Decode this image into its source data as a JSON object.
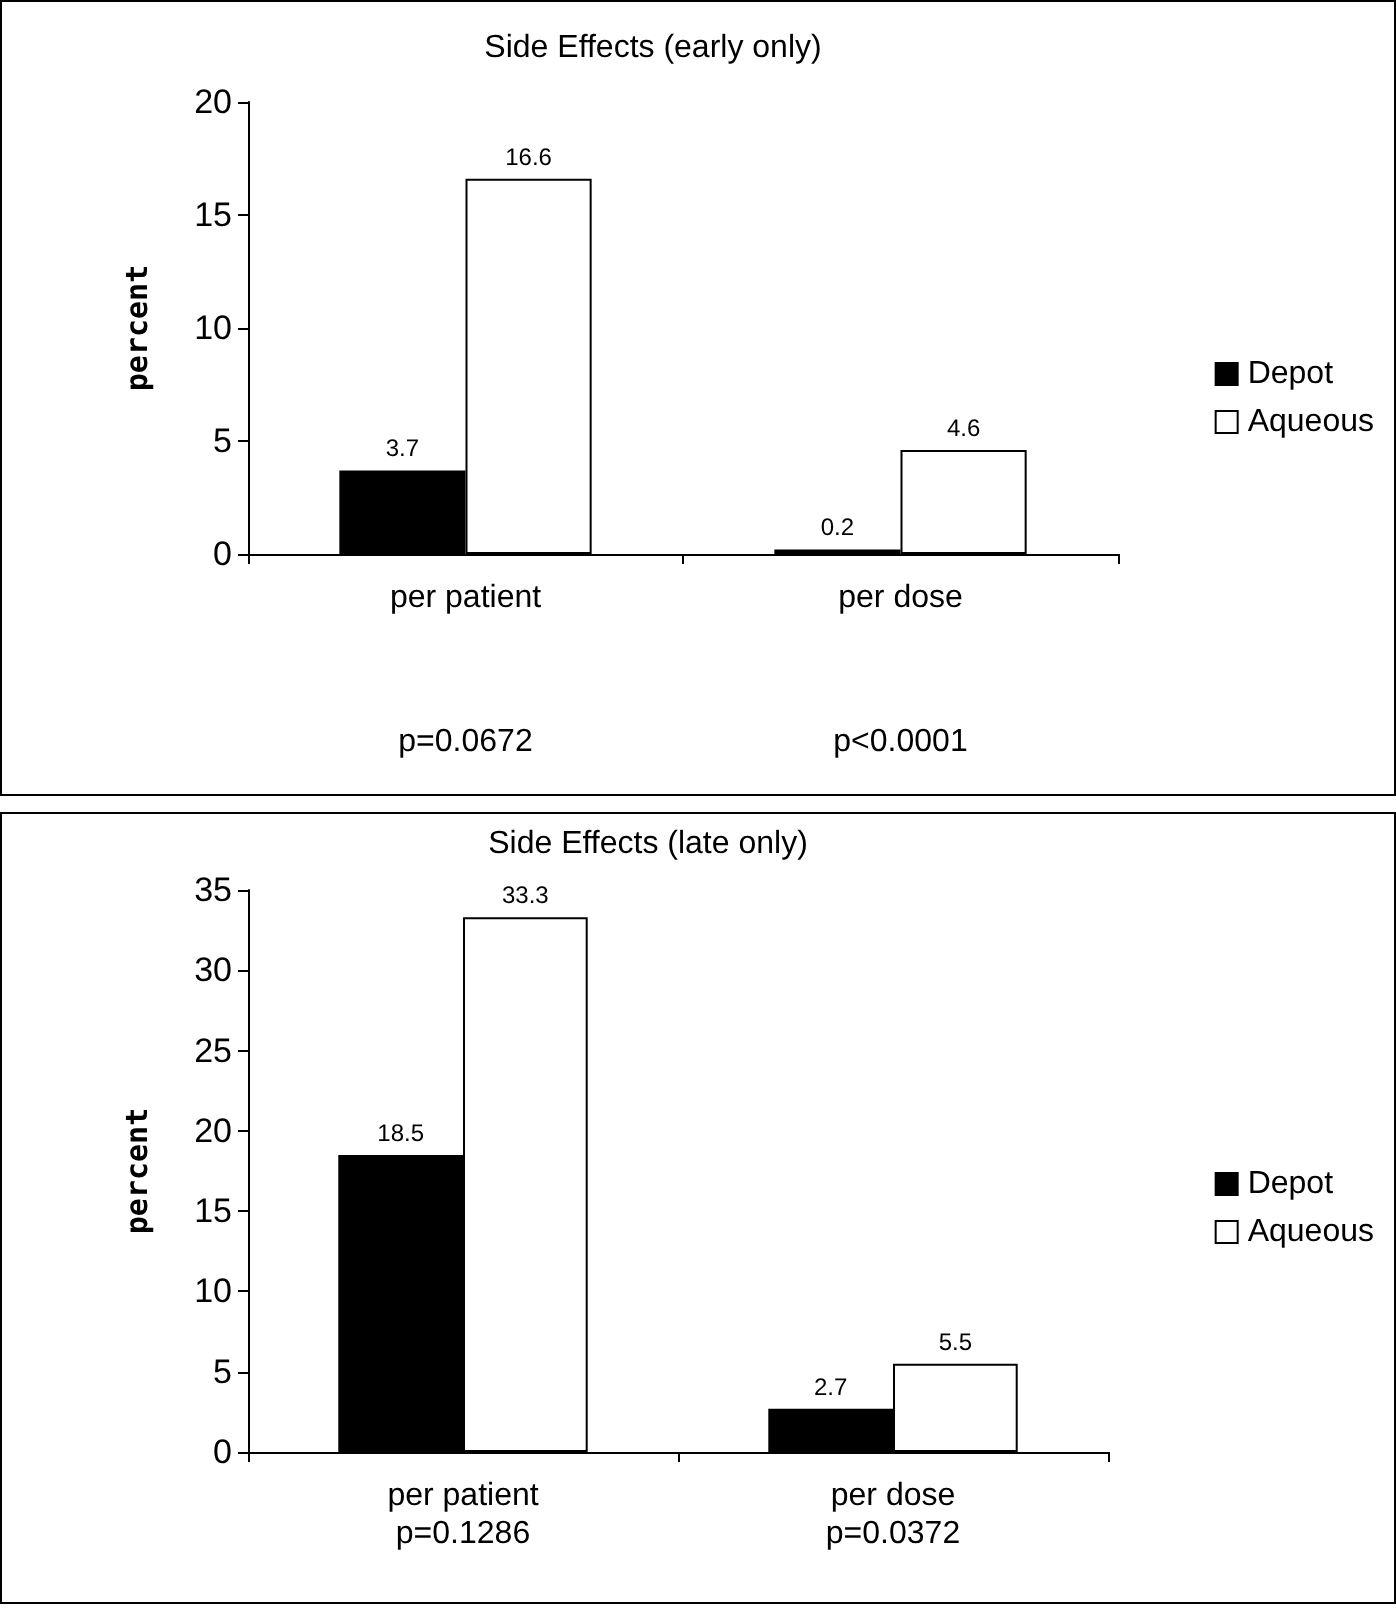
{
  "chart_data": [
    {
      "type": "bar",
      "title": "Side Effects (early only)",
      "ylabel": "percent",
      "categories": [
        "per patient",
        "per dose"
      ],
      "series": [
        {
          "name": "Depot",
          "color": "#000000",
          "values": [
            3.7,
            0.2
          ]
        },
        {
          "name": "Aqueous",
          "color": "#ffffff",
          "values": [
            16.6,
            4.6
          ]
        }
      ],
      "ylim": [
        0,
        20
      ],
      "yticks": [
        0,
        5,
        10,
        15,
        20
      ],
      "data_labels": true,
      "legend": "right",
      "grid": false,
      "annotations": [
        "p=0.0672",
        "p<0.0001"
      ]
    },
    {
      "type": "bar",
      "title": "Side Effects (late only)",
      "ylabel": "percent",
      "categories": [
        "per patient",
        "per dose"
      ],
      "series": [
        {
          "name": "Depot",
          "color": "#000000",
          "values": [
            18.5,
            2.7
          ]
        },
        {
          "name": "Aqueous",
          "color": "#ffffff",
          "values": [
            33.3,
            5.5
          ]
        }
      ],
      "ylim": [
        0,
        35
      ],
      "yticks": [
        0,
        5,
        10,
        15,
        20,
        25,
        30,
        35
      ],
      "data_labels": true,
      "legend": "right",
      "grid": false,
      "annotations": [
        "p=0.1286",
        "p=0.0372"
      ]
    }
  ]
}
